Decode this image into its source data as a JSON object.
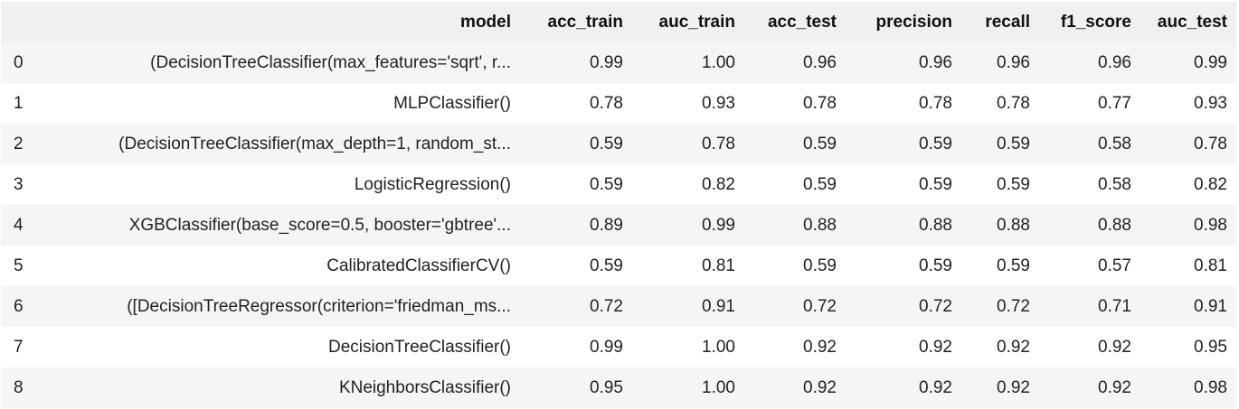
{
  "table": {
    "columns": [
      "",
      "model",
      "acc_train",
      "auc_train",
      "acc_test",
      "precision",
      "recall",
      "f1_score",
      "auc_test"
    ],
    "rows": [
      {
        "index": "0",
        "model": "(DecisionTreeClassifier(max_features='sqrt', r...",
        "acc_train": "0.99",
        "auc_train": "1.00",
        "acc_test": "0.96",
        "precision": "0.96",
        "recall": "0.96",
        "f1_score": "0.96",
        "auc_test": "0.99"
      },
      {
        "index": "1",
        "model": "MLPClassifier()",
        "acc_train": "0.78",
        "auc_train": "0.93",
        "acc_test": "0.78",
        "precision": "0.78",
        "recall": "0.78",
        "f1_score": "0.77",
        "auc_test": "0.93"
      },
      {
        "index": "2",
        "model": "(DecisionTreeClassifier(max_depth=1, random_st...",
        "acc_train": "0.59",
        "auc_train": "0.78",
        "acc_test": "0.59",
        "precision": "0.59",
        "recall": "0.59",
        "f1_score": "0.58",
        "auc_test": "0.78"
      },
      {
        "index": "3",
        "model": "LogisticRegression()",
        "acc_train": "0.59",
        "auc_train": "0.82",
        "acc_test": "0.59",
        "precision": "0.59",
        "recall": "0.59",
        "f1_score": "0.58",
        "auc_test": "0.82"
      },
      {
        "index": "4",
        "model": "XGBClassifier(base_score=0.5, booster='gbtree'...",
        "acc_train": "0.89",
        "auc_train": "0.99",
        "acc_test": "0.88",
        "precision": "0.88",
        "recall": "0.88",
        "f1_score": "0.88",
        "auc_test": "0.98"
      },
      {
        "index": "5",
        "model": "CalibratedClassifierCV()",
        "acc_train": "0.59",
        "auc_train": "0.81",
        "acc_test": "0.59",
        "precision": "0.59",
        "recall": "0.59",
        "f1_score": "0.57",
        "auc_test": "0.81"
      },
      {
        "index": "6",
        "model": "([DecisionTreeRegressor(criterion='friedman_ms...",
        "acc_train": "0.72",
        "auc_train": "0.91",
        "acc_test": "0.72",
        "precision": "0.72",
        "recall": "0.72",
        "f1_score": "0.71",
        "auc_test": "0.91"
      },
      {
        "index": "7",
        "model": "DecisionTreeClassifier()",
        "acc_train": "0.99",
        "auc_train": "1.00",
        "acc_test": "0.92",
        "precision": "0.92",
        "recall": "0.92",
        "f1_score": "0.92",
        "auc_test": "0.95"
      },
      {
        "index": "8",
        "model": "KNeighborsClassifier()",
        "acc_train": "0.95",
        "auc_train": "1.00",
        "acc_test": "0.92",
        "precision": "0.92",
        "recall": "0.92",
        "f1_score": "0.92",
        "auc_test": "0.98"
      }
    ]
  }
}
